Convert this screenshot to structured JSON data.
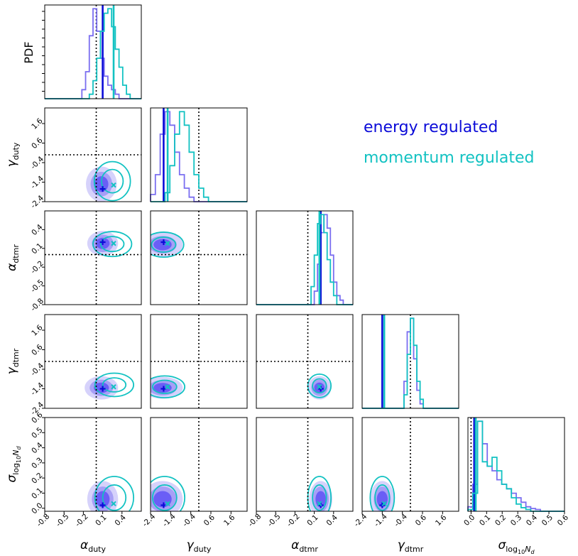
{
  "chart_data": {
    "type": "corner-plot",
    "parameters": [
      {
        "symbol": "α",
        "sub": "duty",
        "ticks": [
          "-0.8",
          "-0.5",
          "-0.2",
          "0.1",
          "0.4"
        ],
        "range": [
          -0.8,
          0.7
        ],
        "truth": 0.0
      },
      {
        "symbol": "γ",
        "sub": "duty",
        "ticks": [
          "-2.4",
          "-1.4",
          "-0.4",
          "0.6",
          "1.6"
        ],
        "range": [
          -2.4,
          2.4
        ],
        "truth": 0.0
      },
      {
        "symbol": "α",
        "sub": "dtmr",
        "ticks": [
          "-0.8",
          "-0.5",
          "-0.2",
          "0.1",
          "0.4"
        ],
        "range": [
          -0.8,
          0.7
        ],
        "truth": 0.0
      },
      {
        "symbol": "γ",
        "sub": "dtmr",
        "ticks": [
          "-2.4",
          "-1.4",
          "-0.4",
          "0.6",
          "1.6"
        ],
        "range": [
          -2.4,
          2.4
        ],
        "truth": 0.0
      },
      {
        "symbol": "σ",
        "sub": "log10Nd",
        "ticks": [
          "0.0",
          "0.1",
          "0.2",
          "0.3",
          "0.4",
          "0.5",
          "0.6"
        ],
        "range": [
          -0.02,
          0.6
        ],
        "truth": 0.0
      }
    ],
    "pdf_label": "PDF",
    "legend": [
      {
        "label": "energy regulated",
        "color": "#0b0bd8"
      },
      {
        "label": "momentum regulated",
        "color": "#12c2c2"
      }
    ],
    "series": [
      {
        "name": "energy regulated",
        "color": "#0b0bd8",
        "hist_color": "#7a6ef0",
        "fill_color": "#6a5ef6",
        "medians": [
          0.1,
          -1.75,
          0.2,
          -1.4,
          0.02
        ]
      },
      {
        "name": "momentum regulated",
        "color": "#12c2c2",
        "hist_color": "#12c2c2",
        "medians": [
          0.27,
          -1.55,
          0.18,
          -1.3,
          0.03
        ]
      }
    ],
    "marginal_histograms": {
      "energy regulated": [
        [
          0,
          0,
          0,
          0,
          0,
          0,
          0,
          0,
          0,
          0,
          0.1,
          0.3,
          0.7,
          1.0,
          0.75,
          0.45,
          0.25,
          0.15,
          0.1,
          0.05,
          0,
          0,
          0,
          0,
          0,
          0
        ],
        [
          0.08,
          0.3,
          0.75,
          1.0,
          0.85,
          0.55,
          0.3,
          0.15,
          0.05,
          0,
          0,
          0,
          0,
          0,
          0,
          0,
          0,
          0,
          0,
          0
        ],
        [
          0,
          0,
          0,
          0,
          0,
          0,
          0,
          0,
          0,
          0,
          0,
          0,
          0,
          0,
          0,
          0,
          0,
          0,
          0.15,
          0.45,
          0.8,
          1.0,
          0.85,
          0.55,
          0.25,
          0.1,
          0.05,
          0,
          0,
          0
        ],
        [
          0,
          0,
          0,
          0,
          0,
          0,
          0,
          0,
          0,
          0,
          0,
          0,
          0,
          0.3,
          0.85,
          1.0,
          0.55,
          0.2,
          0.05,
          0,
          0,
          0,
          0,
          0,
          0,
          0,
          0,
          0,
          0,
          0
        ],
        [
          0.05,
          0.3,
          1.0,
          0.75,
          0.5,
          0.45,
          0.35,
          0.3,
          0.25,
          0.2,
          0.15,
          0.1,
          0.05,
          0.03,
          0.02,
          0,
          0,
          0,
          0,
          0
        ]
      ],
      "momentum regulated": [
        [
          0,
          0,
          0,
          0,
          0,
          0,
          0,
          0,
          0,
          0,
          0,
          0,
          0.05,
          0.2,
          0.45,
          0.75,
          0.95,
          1.0,
          0.8,
          0.55,
          0.35,
          0.15,
          0.05,
          0,
          0,
          0
        ],
        [
          0,
          0,
          0,
          0.1,
          0.4,
          0.75,
          1.0,
          0.85,
          0.55,
          0.3,
          0.15,
          0.05,
          0,
          0,
          0,
          0,
          0,
          0,
          0,
          0
        ],
        [
          0,
          0,
          0,
          0,
          0,
          0,
          0,
          0,
          0,
          0,
          0,
          0,
          0,
          0,
          0,
          0,
          0,
          0.2,
          0.55,
          0.9,
          1.0,
          0.8,
          0.5,
          0.25,
          0.1,
          0,
          0,
          0,
          0,
          0
        ],
        [
          0,
          0,
          0,
          0,
          0,
          0,
          0,
          0,
          0,
          0,
          0,
          0,
          0,
          0.15,
          0.6,
          1.0,
          0.7,
          0.3,
          0.1,
          0,
          0,
          0,
          0,
          0,
          0,
          0,
          0,
          0,
          0,
          0
        ],
        [
          0.02,
          0.2,
          1.0,
          0.55,
          0.5,
          0.6,
          0.45,
          0.3,
          0.25,
          0.15,
          0.08,
          0.04,
          0.02,
          0,
          0,
          0,
          0,
          0,
          0,
          0
        ]
      ]
    },
    "contours_2d": {
      "energy regulated": [
        {
          "pair": [
            0,
            1
          ],
          "center": [
            0.08,
            -1.5
          ],
          "sigma": [
            0.12,
            0.45
          ]
        },
        {
          "pair": [
            0,
            2
          ],
          "center": [
            0.1,
            0.18
          ],
          "sigma": [
            0.12,
            0.1
          ]
        },
        {
          "pair": [
            1,
            2
          ],
          "center": [
            -1.8,
            0.16
          ],
          "sigma": [
            0.5,
            0.1
          ]
        },
        {
          "pair": [
            0,
            3
          ],
          "center": [
            0.08,
            -1.35
          ],
          "sigma": [
            0.13,
            0.3
          ]
        },
        {
          "pair": [
            1,
            3
          ],
          "center": [
            -1.8,
            -1.35
          ],
          "sigma": [
            0.5,
            0.28
          ]
        },
        {
          "pair": [
            2,
            3
          ],
          "center": [
            0.18,
            -1.35
          ],
          "sigma": [
            0.09,
            0.3
          ]
        },
        {
          "pair": [
            0,
            4
          ],
          "center": [
            0.1,
            0.06
          ],
          "sigma": [
            0.12,
            0.06
          ]
        },
        {
          "pair": [
            1,
            4
          ],
          "center": [
            -1.8,
            0.06
          ],
          "sigma": [
            0.5,
            0.06
          ]
        },
        {
          "pair": [
            2,
            4
          ],
          "center": [
            0.2,
            0.06
          ],
          "sigma": [
            0.09,
            0.06
          ]
        },
        {
          "pair": [
            3,
            4
          ],
          "center": [
            -1.4,
            0.06
          ],
          "sigma": [
            0.3,
            0.06
          ]
        }
      ],
      "momentum regulated": [
        {
          "pair": [
            0,
            1
          ],
          "center": [
            0.25,
            -1.35
          ],
          "sigma": [
            0.14,
            0.5
          ]
        },
        {
          "pair": [
            0,
            2
          ],
          "center": [
            0.25,
            0.17
          ],
          "sigma": [
            0.15,
            0.1
          ]
        },
        {
          "pair": [
            1,
            2
          ],
          "center": [
            -1.75,
            0.16
          ],
          "sigma": [
            0.5,
            0.1
          ]
        },
        {
          "pair": [
            0,
            3
          ],
          "center": [
            0.28,
            -1.2
          ],
          "sigma": [
            0.15,
            0.3
          ]
        },
        {
          "pair": [
            1,
            3
          ],
          "center": [
            -1.7,
            -1.3
          ],
          "sigma": [
            0.5,
            0.28
          ]
        },
        {
          "pair": [
            2,
            3
          ],
          "center": [
            0.18,
            -1.25
          ],
          "sigma": [
            0.09,
            0.3
          ]
        },
        {
          "pair": [
            0,
            4
          ],
          "center": [
            0.28,
            0.07
          ],
          "sigma": [
            0.15,
            0.07
          ]
        },
        {
          "pair": [
            1,
            4
          ],
          "center": [
            -1.7,
            0.07
          ],
          "sigma": [
            0.5,
            0.07
          ]
        },
        {
          "pair": [
            2,
            4
          ],
          "center": [
            0.18,
            0.07
          ],
          "sigma": [
            0.09,
            0.07
          ]
        },
        {
          "pair": [
            3,
            4
          ],
          "center": [
            -1.4,
            0.07
          ],
          "sigma": [
            0.3,
            0.07
          ]
        }
      ]
    },
    "pdf_ticks_count": 10
  }
}
